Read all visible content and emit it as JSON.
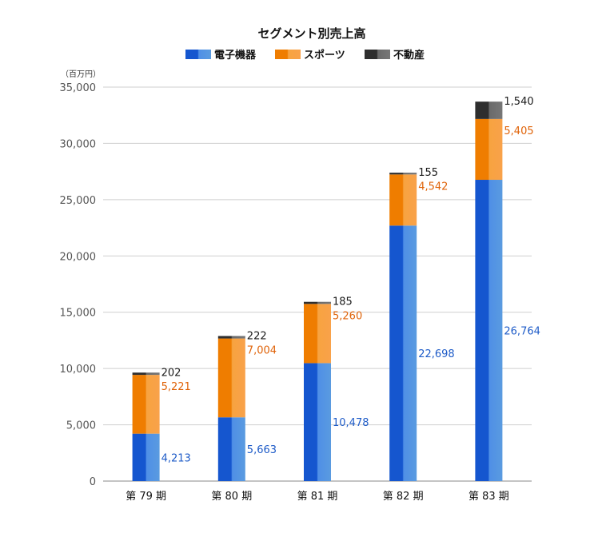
{
  "chart_data": {
    "type": "bar",
    "stacked": true,
    "title": "セグメント別売上高",
    "unit_label": "（百万円）",
    "categories": [
      "第 79 期",
      "第 80 期",
      "第 81 期",
      "第 82 期",
      "第 83 期"
    ],
    "series": [
      {
        "name": "電子機器",
        "values": [
          4213,
          5663,
          10478,
          22698,
          26764
        ],
        "color": "#1a5fd6",
        "label_color": "#1f5cc8"
      },
      {
        "name": "スポーツ",
        "values": [
          5221,
          7004,
          5260,
          4542,
          5405
        ],
        "color": "#f28a00",
        "label_color": "#e0640a"
      },
      {
        "name": "不動産",
        "values": [
          202,
          222,
          185,
          155,
          1540
        ],
        "color": "#3c3c3c",
        "label_color": "#1a1a1a"
      }
    ],
    "data_labels": [
      [
        "4,213",
        "5,663",
        "10,478",
        "22,698",
        "26,764"
      ],
      [
        "5,221",
        "7,004",
        "5,260",
        "4,542",
        "5,405"
      ],
      [
        "202",
        "222",
        "185",
        "155",
        "1,540"
      ]
    ],
    "ylim": [
      0,
      35000
    ],
    "yticks": [
      0,
      5000,
      10000,
      15000,
      20000,
      25000,
      30000,
      35000
    ],
    "ytick_labels": [
      "0",
      "5,000",
      "10,000",
      "15,000",
      "20,000",
      "25,000",
      "30,000",
      "35,000"
    ],
    "legend_position": "top-center",
    "grid": true
  }
}
